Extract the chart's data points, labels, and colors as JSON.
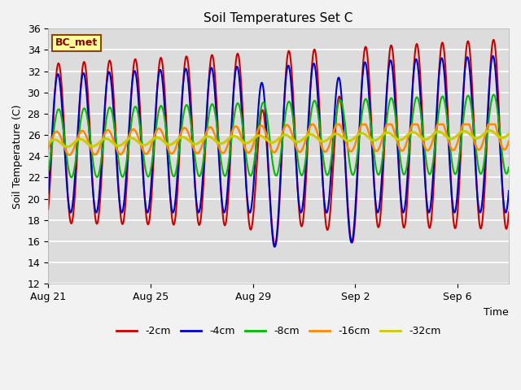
{
  "title": "Soil Temperatures Set C",
  "xlabel": "Time",
  "ylabel": "Soil Temperature (C)",
  "ylim": [
    12,
    36
  ],
  "bg_color": "#dcdcdc",
  "fig_color": "#f2f2f2",
  "label_box_text": "BC_met",
  "label_box_facecolor": "#ffff99",
  "label_box_edgecolor": "#8B4513",
  "legend_labels": [
    "-2cm",
    "-4cm",
    "-8cm",
    "-16cm",
    "-32cm"
  ],
  "line_colors": [
    "#cc0000",
    "#0000cc",
    "#00bb00",
    "#ff8800",
    "#cccc00"
  ],
  "line_widths": [
    1.5,
    1.5,
    1.5,
    1.8,
    2.2
  ],
  "xtick_labels": [
    "Aug 21",
    "Aug 25",
    "Aug 29",
    "Sep 2",
    "Sep 6"
  ],
  "xtick_positions": [
    0,
    4,
    8,
    12,
    16
  ],
  "total_days": 18,
  "num_points": 1080
}
